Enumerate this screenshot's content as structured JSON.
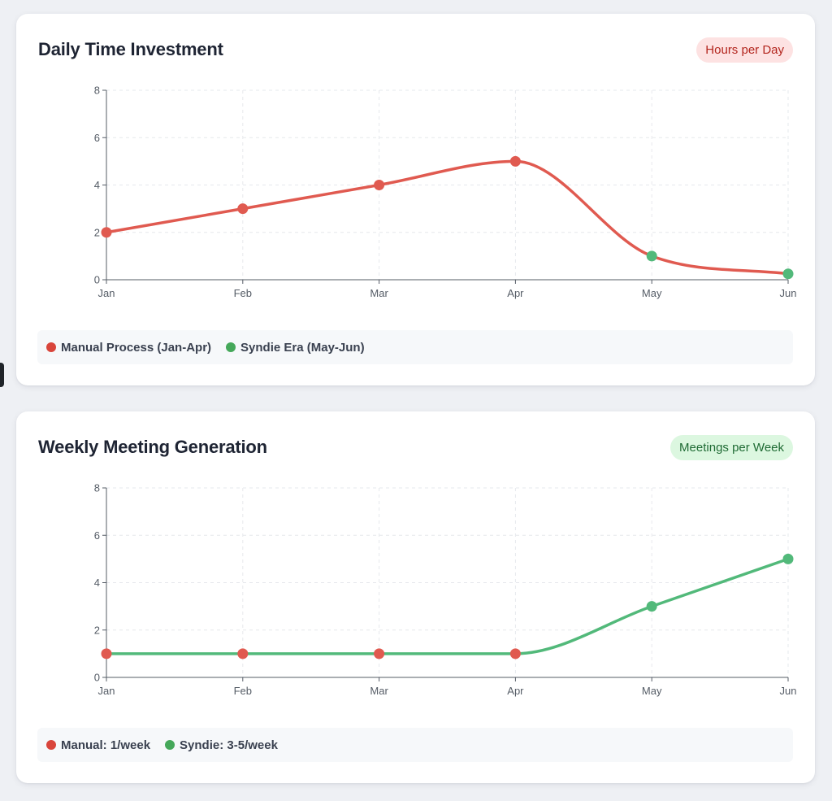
{
  "colors": {
    "manual": "#e05a50",
    "syndie": "#52b97a",
    "grid": "#e6e8ec",
    "axis": "#555c66"
  },
  "chart_data": [
    {
      "type": "line",
      "title": "Daily Time Investment",
      "badge": "Hours per Day",
      "categories": [
        "Jan",
        "Feb",
        "Mar",
        "Apr",
        "May",
        "Jun"
      ],
      "values": [
        2,
        3,
        4,
        5,
        1,
        0.25
      ],
      "point_series": [
        "manual",
        "manual",
        "manual",
        "manual",
        "syndie",
        "syndie"
      ],
      "line_color": "manual",
      "ylim": [
        0,
        8
      ],
      "yticks": [
        0,
        2,
        4,
        6,
        8
      ],
      "grid": true,
      "legend": [
        {
          "label": "Manual Process (Jan-Apr)",
          "color": "manual"
        },
        {
          "label": "Syndie Era (May-Jun)",
          "color": "syndie"
        }
      ]
    },
    {
      "type": "line",
      "title": "Weekly Meeting Generation",
      "badge": "Meetings per Week",
      "categories": [
        "Jan",
        "Feb",
        "Mar",
        "Apr",
        "May",
        "Jun"
      ],
      "values": [
        1,
        1,
        1,
        1,
        3,
        5
      ],
      "point_series": [
        "manual",
        "manual",
        "manual",
        "manual",
        "syndie",
        "syndie"
      ],
      "line_color": "syndie",
      "ylim": [
        0,
        8
      ],
      "yticks": [
        0,
        2,
        4,
        6,
        8
      ],
      "grid": true,
      "legend": [
        {
          "label": "Manual: 1/week",
          "color": "manual"
        },
        {
          "label": "Syndie: 3-5/week",
          "color": "syndie"
        }
      ]
    }
  ]
}
